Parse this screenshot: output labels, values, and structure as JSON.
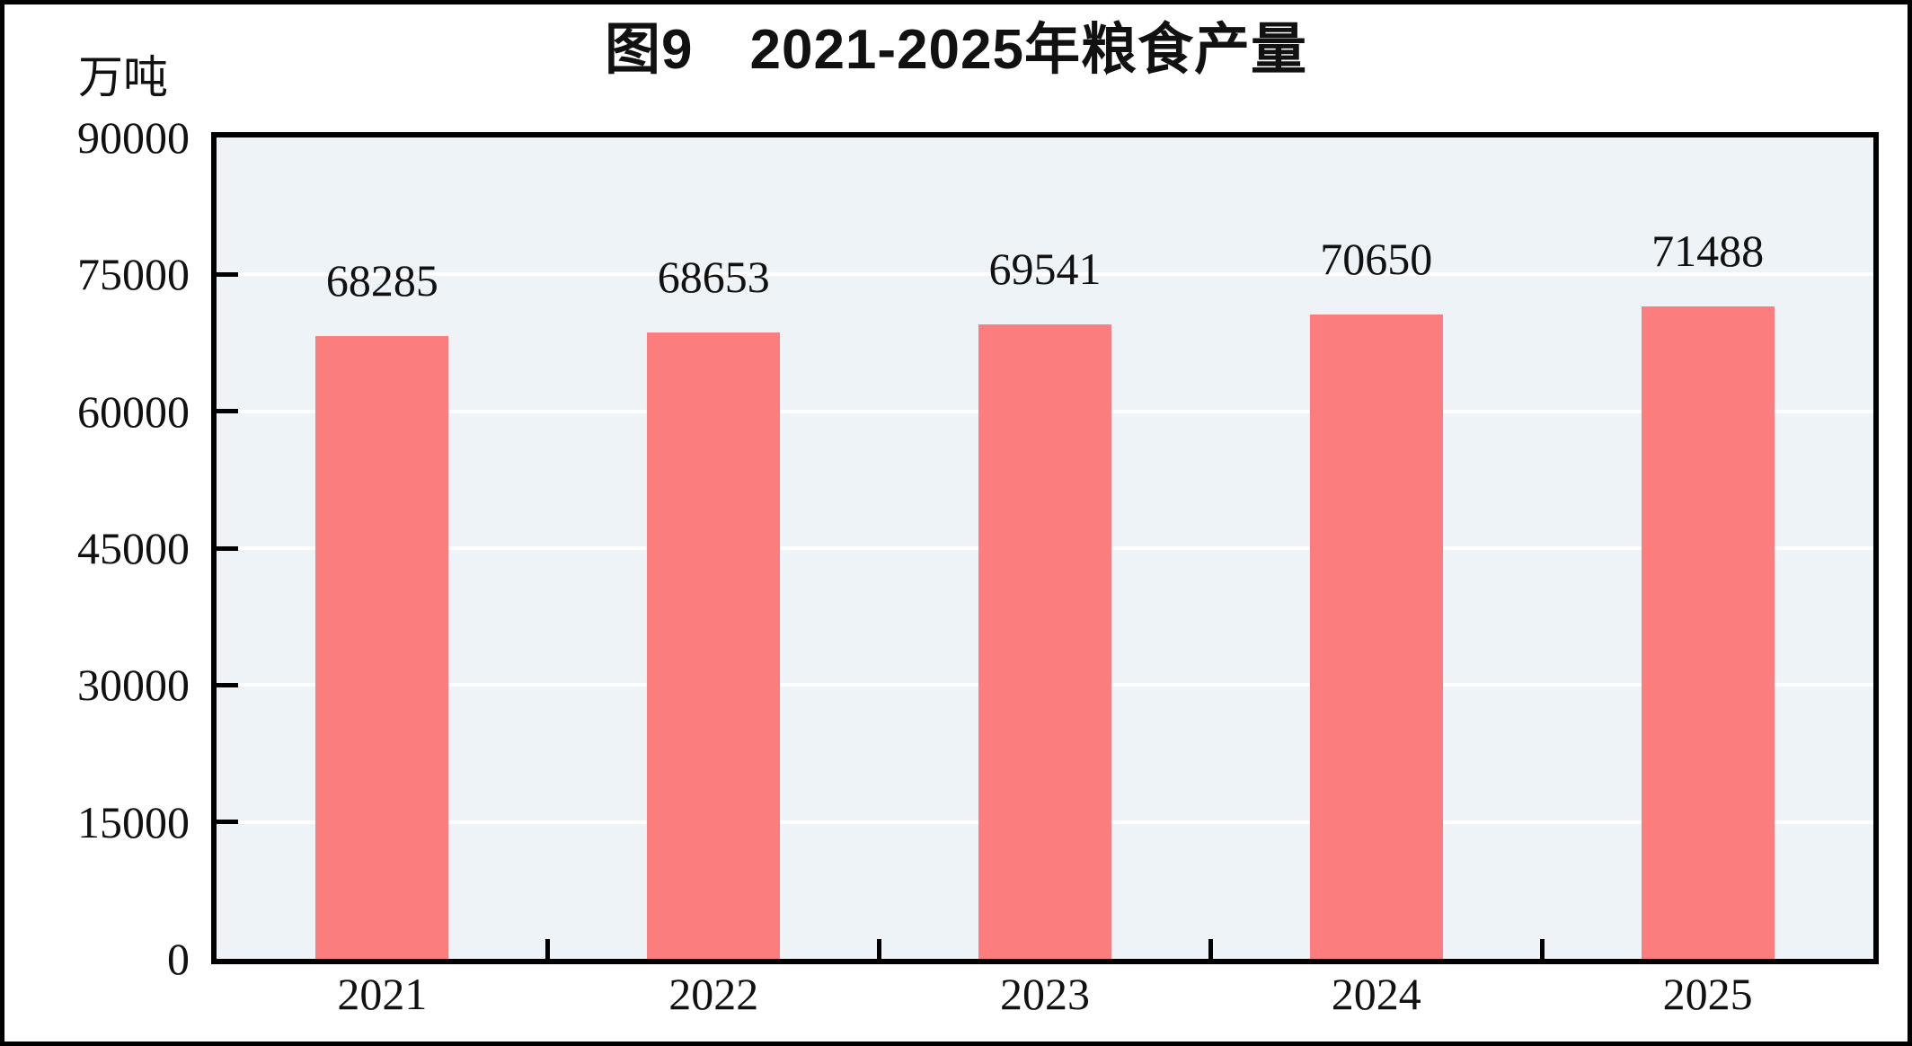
{
  "chart_data": {
    "type": "bar",
    "title": "图9　2021-2025年粮食产量",
    "ylabel_unit": "万吨",
    "categories": [
      "2021",
      "2022",
      "2023",
      "2024",
      "2025"
    ],
    "values": [
      68285,
      68653,
      69541,
      70650,
      71488
    ],
    "value_labels": [
      "68285",
      "68653",
      "69541",
      "70650",
      "71488"
    ],
    "ylim": [
      0,
      90000
    ],
    "ytick_interval": 15000,
    "yticks": [
      "0",
      "15000",
      "30000",
      "45000",
      "60000",
      "75000",
      "90000"
    ],
    "grid": "horizontal-white-gridlines",
    "legend": "none",
    "colors": {
      "bar": "#FC7D7D",
      "plot_background": "#EDF3F7",
      "gridline": "#FFFFFF",
      "axis_frame": "#000000",
      "text": "#111111",
      "canvas_background": "#FFFFFF"
    }
  }
}
